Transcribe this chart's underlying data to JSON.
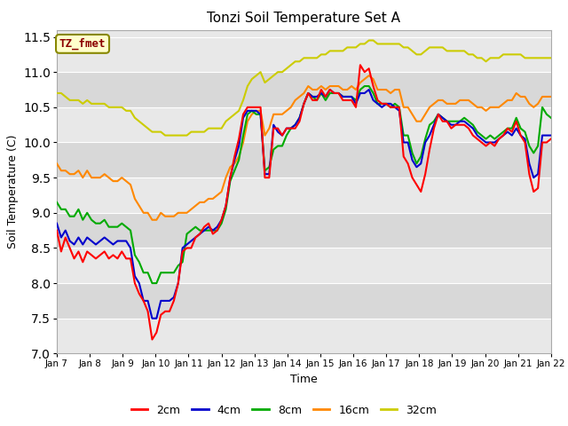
{
  "title": "Tonzi Soil Temperature Set A",
  "xlabel": "Time",
  "ylabel": "Soil Temperature (C)",
  "ylim": [
    7.0,
    11.6
  ],
  "annotation_text": "TZ_fmet",
  "annotation_color": "#8b0000",
  "annotation_bg": "#ffffcc",
  "annotation_border": "#999900",
  "plot_bg_dark": "#d8d8d8",
  "plot_bg_light": "#e8e8e8",
  "colors": {
    "2cm": "#ff0000",
    "4cm": "#0000cc",
    "8cm": "#00aa00",
    "16cm": "#ff8800",
    "32cm": "#cccc00"
  },
  "xtick_labels": [
    "Jan 7",
    "Jan 8",
    "Jan 9",
    "Jan 10",
    "Jan 11",
    "Jan 12",
    "Jan 13",
    "Jan 14",
    "Jan 15",
    "Jan 16",
    "Jan 17",
    "Jan 18",
    "Jan 19",
    "Jan 20",
    "Jan 21",
    "Jan 22"
  ],
  "yticks": [
    7.0,
    7.5,
    8.0,
    8.5,
    9.0,
    9.5,
    10.0,
    10.5,
    11.0,
    11.5
  ],
  "series": {
    "2cm": [
      8.75,
      8.45,
      8.65,
      8.5,
      8.35,
      8.45,
      8.3,
      8.45,
      8.4,
      8.35,
      8.4,
      8.45,
      8.35,
      8.4,
      8.35,
      8.45,
      8.35,
      8.35,
      8.0,
      7.85,
      7.75,
      7.6,
      7.2,
      7.3,
      7.55,
      7.6,
      7.6,
      7.75,
      8.0,
      8.45,
      8.5,
      8.5,
      8.65,
      8.7,
      8.8,
      8.85,
      8.7,
      8.75,
      8.9,
      9.1,
      9.5,
      9.8,
      10.05,
      10.4,
      10.5,
      10.5,
      10.5,
      10.5,
      9.5,
      9.5,
      10.2,
      10.2,
      10.1,
      10.2,
      10.2,
      10.2,
      10.3,
      10.55,
      10.7,
      10.6,
      10.6,
      10.75,
      10.65,
      10.75,
      10.7,
      10.7,
      10.6,
      10.6,
      10.6,
      10.5,
      11.1,
      11.0,
      11.05,
      10.8,
      10.6,
      10.55,
      10.55,
      10.5,
      10.5,
      10.5,
      9.8,
      9.7,
      9.5,
      9.4,
      9.3,
      9.55,
      9.9,
      10.2,
      10.4,
      10.3,
      10.3,
      10.2,
      10.25,
      10.25,
      10.25,
      10.2,
      10.1,
      10.05,
      10.0,
      9.95,
      10.0,
      9.95,
      10.05,
      10.1,
      10.2,
      10.15,
      10.3,
      10.1,
      10.0,
      9.55,
      9.3,
      9.35,
      10.0,
      10.0,
      10.05
    ],
    "4cm": [
      8.85,
      8.65,
      8.75,
      8.6,
      8.55,
      8.65,
      8.55,
      8.65,
      8.6,
      8.55,
      8.6,
      8.65,
      8.6,
      8.55,
      8.6,
      8.6,
      8.6,
      8.5,
      8.1,
      8.0,
      7.75,
      7.75,
      7.5,
      7.5,
      7.75,
      7.75,
      7.75,
      7.8,
      8.0,
      8.5,
      8.55,
      8.6,
      8.65,
      8.7,
      8.75,
      8.8,
      8.75,
      8.8,
      8.9,
      9.1,
      9.5,
      9.75,
      9.95,
      10.35,
      10.45,
      10.45,
      10.45,
      10.4,
      9.55,
      9.55,
      10.25,
      10.15,
      10.1,
      10.2,
      10.2,
      10.25,
      10.35,
      10.55,
      10.7,
      10.65,
      10.65,
      10.7,
      10.65,
      10.75,
      10.7,
      10.7,
      10.65,
      10.65,
      10.65,
      10.55,
      10.7,
      10.7,
      10.75,
      10.6,
      10.55,
      10.5,
      10.55,
      10.55,
      10.5,
      10.45,
      10.0,
      10.0,
      9.75,
      9.65,
      9.7,
      10.0,
      10.1,
      10.25,
      10.4,
      10.35,
      10.3,
      10.25,
      10.25,
      10.3,
      10.3,
      10.25,
      10.2,
      10.1,
      10.05,
      10.0,
      10.0,
      10.0,
      10.05,
      10.1,
      10.15,
      10.1,
      10.2,
      10.1,
      10.05,
      9.7,
      9.5,
      9.55,
      10.1,
      10.1,
      10.1
    ],
    "8cm": [
      9.15,
      9.05,
      9.05,
      8.95,
      8.95,
      9.05,
      8.9,
      9.0,
      8.9,
      8.85,
      8.85,
      8.9,
      8.8,
      8.8,
      8.8,
      8.85,
      8.8,
      8.75,
      8.4,
      8.3,
      8.15,
      8.15,
      8.0,
      8.0,
      8.15,
      8.15,
      8.15,
      8.15,
      8.25,
      8.3,
      8.7,
      8.75,
      8.8,
      8.75,
      8.75,
      8.75,
      8.75,
      8.75,
      8.85,
      9.05,
      9.45,
      9.6,
      9.75,
      10.1,
      10.4,
      10.45,
      10.4,
      10.4,
      9.6,
      9.65,
      9.9,
      9.95,
      9.95,
      10.1,
      10.2,
      10.25,
      10.35,
      10.55,
      10.7,
      10.65,
      10.6,
      10.7,
      10.6,
      10.7,
      10.7,
      10.7,
      10.65,
      10.65,
      10.65,
      10.6,
      10.75,
      10.8,
      10.8,
      10.7,
      10.55,
      10.55,
      10.55,
      10.5,
      10.55,
      10.5,
      10.1,
      10.1,
      9.85,
      9.7,
      9.8,
      10.05,
      10.25,
      10.3,
      10.4,
      10.35,
      10.3,
      10.3,
      10.3,
      10.3,
      10.35,
      10.3,
      10.25,
      10.15,
      10.1,
      10.05,
      10.1,
      10.05,
      10.1,
      10.15,
      10.2,
      10.2,
      10.35,
      10.2,
      10.15,
      9.95,
      9.85,
      9.95,
      10.5,
      10.4,
      10.35
    ],
    "16cm": [
      9.7,
      9.6,
      9.6,
      9.55,
      9.55,
      9.6,
      9.5,
      9.6,
      9.5,
      9.5,
      9.5,
      9.55,
      9.5,
      9.45,
      9.45,
      9.5,
      9.45,
      9.4,
      9.2,
      9.1,
      9.0,
      9.0,
      8.9,
      8.9,
      9.0,
      8.95,
      8.95,
      8.95,
      9.0,
      9.0,
      9.0,
      9.05,
      9.1,
      9.15,
      9.15,
      9.2,
      9.2,
      9.25,
      9.3,
      9.5,
      9.65,
      9.7,
      9.8,
      10.0,
      10.3,
      10.4,
      10.45,
      10.45,
      10.1,
      10.2,
      10.4,
      10.4,
      10.4,
      10.45,
      10.5,
      10.6,
      10.65,
      10.7,
      10.8,
      10.75,
      10.75,
      10.8,
      10.75,
      10.8,
      10.8,
      10.8,
      10.75,
      10.75,
      10.8,
      10.75,
      10.85,
      10.9,
      10.95,
      10.9,
      10.75,
      10.75,
      10.75,
      10.7,
      10.75,
      10.75,
      10.5,
      10.5,
      10.4,
      10.3,
      10.3,
      10.4,
      10.5,
      10.55,
      10.6,
      10.6,
      10.55,
      10.55,
      10.55,
      10.6,
      10.6,
      10.6,
      10.55,
      10.5,
      10.5,
      10.45,
      10.5,
      10.5,
      10.5,
      10.55,
      10.6,
      10.6,
      10.7,
      10.65,
      10.65,
      10.55,
      10.5,
      10.55,
      10.65,
      10.65,
      10.65
    ],
    "32cm": [
      10.7,
      10.7,
      10.65,
      10.6,
      10.6,
      10.6,
      10.55,
      10.6,
      10.55,
      10.55,
      10.55,
      10.55,
      10.5,
      10.5,
      10.5,
      10.5,
      10.45,
      10.45,
      10.35,
      10.3,
      10.25,
      10.2,
      10.15,
      10.15,
      10.15,
      10.1,
      10.1,
      10.1,
      10.1,
      10.1,
      10.1,
      10.15,
      10.15,
      10.15,
      10.15,
      10.2,
      10.2,
      10.2,
      10.2,
      10.3,
      10.35,
      10.4,
      10.45,
      10.6,
      10.8,
      10.9,
      10.95,
      11.0,
      10.85,
      10.9,
      10.95,
      11.0,
      11.0,
      11.05,
      11.1,
      11.15,
      11.15,
      11.2,
      11.2,
      11.2,
      11.2,
      11.25,
      11.25,
      11.3,
      11.3,
      11.3,
      11.3,
      11.35,
      11.35,
      11.35,
      11.4,
      11.4,
      11.45,
      11.45,
      11.4,
      11.4,
      11.4,
      11.4,
      11.4,
      11.4,
      11.35,
      11.35,
      11.3,
      11.25,
      11.25,
      11.3,
      11.35,
      11.35,
      11.35,
      11.35,
      11.3,
      11.3,
      11.3,
      11.3,
      11.3,
      11.25,
      11.25,
      11.2,
      11.2,
      11.15,
      11.2,
      11.2,
      11.2,
      11.25,
      11.25,
      11.25,
      11.25,
      11.25,
      11.2,
      11.2,
      11.2,
      11.2,
      11.2,
      11.2,
      11.2
    ]
  }
}
